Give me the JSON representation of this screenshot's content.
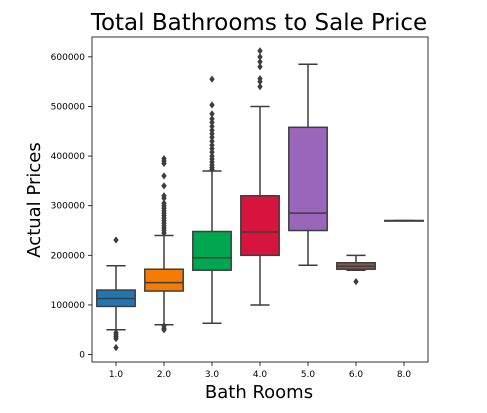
{
  "chart_data": {
    "type": "box",
    "title": "Total Bathrooms to Sale Price",
    "xlabel": "Bath Rooms",
    "ylabel": "Actual Prices",
    "categories": [
      "1.0",
      "2.0",
      "3.0",
      "4.0",
      "5.0",
      "6.0",
      "8.0"
    ],
    "ylim": [
      -15000,
      640000
    ],
    "yticks": [
      0,
      100000,
      200000,
      300000,
      400000,
      500000,
      600000
    ],
    "ytick_labels": [
      "0",
      "100000",
      "200000",
      "300000",
      "400000",
      "500000",
      "600000"
    ],
    "grid": false,
    "boxes": [
      {
        "category": "1.0",
        "color": "#1f77b4",
        "whisker_low": 50000,
        "q1": 97000,
        "median": 113000,
        "q3": 130000,
        "whisker_high": 179000,
        "outliers": [
          231000,
          44000,
          40000,
          36000,
          32000,
          14000
        ]
      },
      {
        "category": "2.0",
        "color": "#f57c00",
        "whisker_low": 60000,
        "q1": 128000,
        "median": 145000,
        "q3": 172000,
        "whisker_high": 240000,
        "outliers": [
          395000,
          390000,
          385000,
          360000,
          340000,
          320000,
          315000,
          305000,
          300000,
          295000,
          290000,
          285000,
          280000,
          275000,
          270000,
          265000,
          260000,
          255000,
          250000,
          245000,
          58000,
          53000,
          50000
        ]
      },
      {
        "category": "3.0",
        "color": "#00a650",
        "whisker_low": 63000,
        "q1": 170000,
        "median": 195000,
        "q3": 248000,
        "whisker_high": 370000,
        "outliers": [
          555000,
          503000,
          485000,
          475000,
          468000,
          460000,
          452000,
          445000,
          438000,
          430000,
          422000,
          415000,
          408000,
          400000,
          394000,
          388000,
          382000,
          377000,
          373000
        ]
      },
      {
        "category": "4.0",
        "color": "#d7143c",
        "whisker_low": 100000,
        "q1": 200000,
        "median": 247000,
        "q3": 320000,
        "whisker_high": 500000,
        "outliers": [
          612000,
          600000,
          590000,
          580000,
          556000,
          550000,
          540000
        ]
      },
      {
        "category": "5.0",
        "color": "#9966bb",
        "whisker_low": 180000,
        "q1": 250000,
        "median": 285000,
        "q3": 458000,
        "whisker_high": 585000,
        "outliers": []
      },
      {
        "category": "6.0",
        "color": "#8c564b",
        "whisker_low": 170000,
        "q1": 172000,
        "median": 178000,
        "q3": 185000,
        "whisker_high": 200000,
        "outliers": [
          147000
        ]
      },
      {
        "category": "8.0",
        "color": "#808080",
        "whisker_low": 270000,
        "q1": 270000,
        "median": 270000,
        "q3": 270000,
        "whisker_high": 270000,
        "outliers": []
      }
    ]
  }
}
